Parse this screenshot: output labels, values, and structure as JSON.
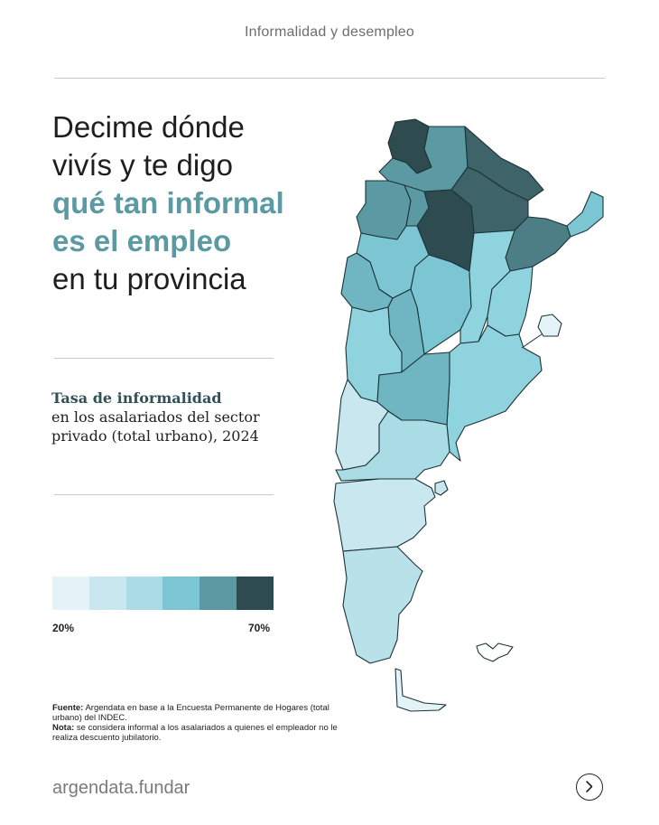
{
  "header": {
    "title": "Informalidad y desempleo"
  },
  "headline": {
    "line1": "Decime dónde",
    "line2": "vivís y te digo",
    "line3": "qué tan informal",
    "line4": "es el empleo",
    "line5": "en tu provincia"
  },
  "subtitle": {
    "strong": "Tasa de informalidad",
    "rest": "en los asalariados del sector privado (total urbano), 2024"
  },
  "legend": {
    "min_label": "20%",
    "max_label": "70%",
    "colors": [
      "#e4f3f7",
      "#c8e7ef",
      "#a9dce5",
      "#7cc6d4",
      "#5c9aa3",
      "#2e4b50"
    ]
  },
  "source": {
    "fuente_label": "Fuente:",
    "fuente_text": "Argendata en base a la Encuesta Permanente de Hogares (total urbano) del INDEC.",
    "nota_label": "Nota:",
    "nota_text": "se considera informal a los asalariados a quienes el empleador no le realiza descuento jubilatorio."
  },
  "footer": {
    "brand": "argendata.fundar",
    "next_icon": "chevron-right-icon"
  }
}
